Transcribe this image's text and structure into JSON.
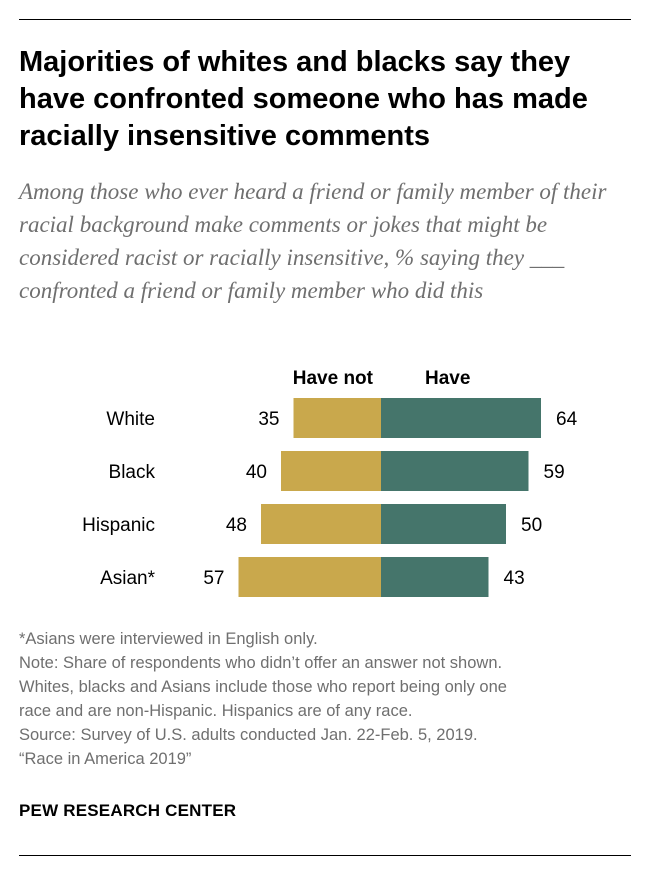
{
  "title": "Majorities of whites and blacks say they have confronted someone who has made racially insensitive comments",
  "subtitle": "Among those who ever heard a friend or family member of their racial background make comments or jokes that might be considered racist or racially insensitive, % saying they ___ confronted a friend or family member who did this",
  "chart_data": {
    "type": "bar",
    "orientation": "diverging-horizontal",
    "categories": [
      "White",
      "Black",
      "Hispanic",
      "Asian*"
    ],
    "series": [
      {
        "name": "Have not",
        "values": [
          35,
          40,
          48,
          57
        ],
        "color": "#c9a84c"
      },
      {
        "name": "Have",
        "values": [
          64,
          59,
          50,
          43
        ],
        "color": "#45756b"
      }
    ],
    "legend_placement": "top",
    "grid": false
  },
  "notes": [
    "*Asians were interviewed in English only.",
    "Note: Share of respondents who didn’t offer an answer not shown.",
    "Whites, blacks and Asians include those who report being only one",
    "race and are non-Hispanic. Hispanics are of any race.",
    "Source: Survey of U.S. adults conducted Jan. 22-Feb. 5, 2019.",
    "“Race in America 2019”"
  ],
  "brand": "PEW RESEARCH CENTER"
}
